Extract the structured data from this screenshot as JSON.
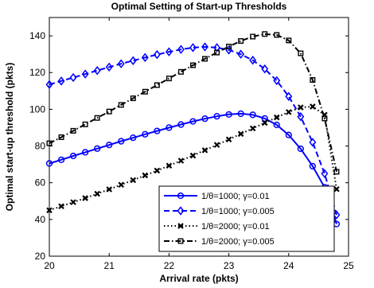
{
  "chart_data": {
    "type": "line",
    "title": "Optimal Setting of Start-up Thresholds",
    "xlabel": "Arrival rate (pkts)",
    "ylabel": "Optimal start-up threshold (pkts)",
    "xlim": [
      20,
      25
    ],
    "ylim": [
      20,
      150
    ],
    "xticks": [
      "20",
      "21",
      "22",
      "23",
      "24",
      "25"
    ],
    "yticks": [
      "20",
      "40",
      "60",
      "80",
      "100",
      "120",
      "140"
    ],
    "grid": false,
    "legend_position": "bottom-right",
    "x": [
      20.0,
      20.2,
      20.4,
      20.6,
      20.8,
      21.0,
      21.2,
      21.4,
      21.6,
      21.8,
      22.0,
      22.2,
      22.4,
      22.6,
      22.8,
      23.0,
      23.2,
      23.4,
      23.6,
      23.8,
      24.0,
      24.2,
      24.4,
      24.6,
      24.8
    ],
    "series": [
      {
        "name": "1/θ=1000; γ=0.01",
        "color": "#0000ff",
        "dash": "solid",
        "marker": "circle",
        "values": [
          70.5,
          72.5,
          74.6,
          76.6,
          78.6,
          80.6,
          82.6,
          84.5,
          86.4,
          88.2,
          90.0,
          91.7,
          93.4,
          94.9,
          96.2,
          97.2,
          97.6,
          97.0,
          95.0,
          91.5,
          86.0,
          78.5,
          69.0,
          57.5,
          37.5
        ]
      },
      {
        "name": "1/θ=1000; γ=0.005",
        "color": "#0000ff",
        "dash": "dashed",
        "marker": "diamond",
        "values": [
          113.5,
          115.4,
          117.3,
          119.2,
          121.1,
          123.0,
          124.8,
          126.5,
          128.2,
          129.8,
          131.3,
          132.6,
          133.6,
          134.0,
          133.6,
          132.3,
          130.0,
          126.7,
          122.0,
          115.6,
          107.0,
          96.0,
          82.0,
          65.0,
          42.5
        ]
      },
      {
        "name": "1/θ=2000; γ=0.01",
        "color": "#000000",
        "dash": "dotted",
        "marker": "x",
        "values": [
          45.0,
          47.2,
          49.4,
          51.6,
          54.0,
          56.4,
          58.9,
          61.4,
          64.0,
          66.6,
          69.3,
          72.0,
          74.8,
          77.7,
          80.6,
          83.6,
          86.6,
          89.6,
          92.6,
          95.6,
          98.5,
          101.0,
          101.5,
          97.0,
          56.5
        ]
      },
      {
        "name": "1/θ=2000; γ=0.005",
        "color": "#000000",
        "dash": "dashdot",
        "marker": "square",
        "values": [
          81.5,
          84.8,
          88.3,
          91.8,
          95.3,
          98.8,
          102.4,
          106.0,
          109.6,
          113.2,
          116.8,
          120.4,
          124.0,
          127.5,
          130.9,
          134.2,
          137.2,
          139.6,
          141.0,
          140.5,
          137.5,
          130.5,
          116.0,
          95.0,
          66.0
        ]
      }
    ]
  }
}
